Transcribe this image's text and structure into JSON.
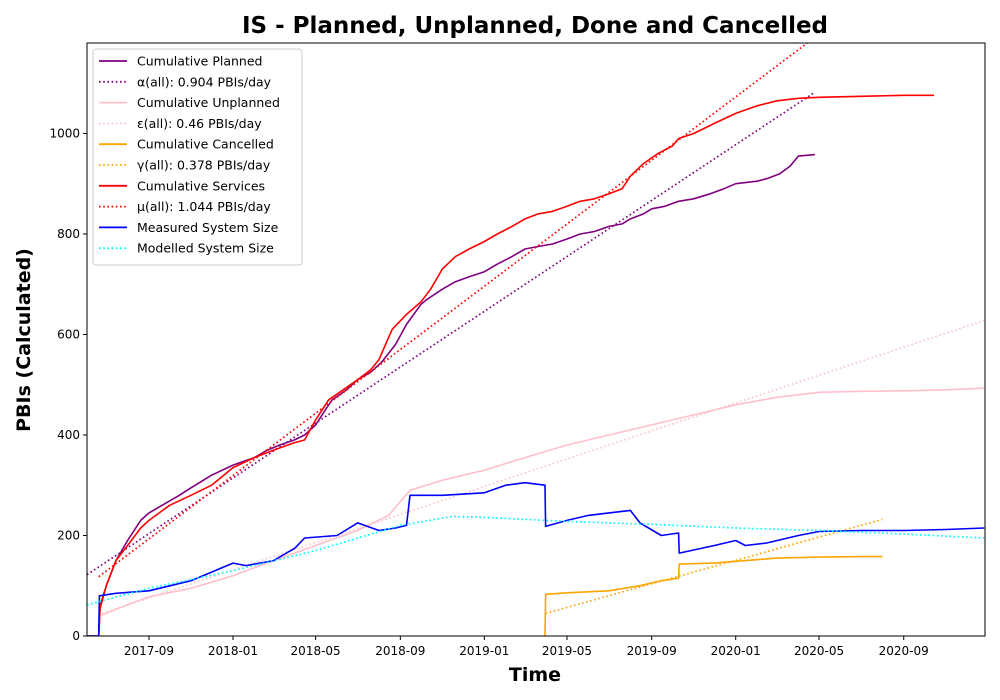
{
  "chart_data": {
    "type": "line",
    "title": "IS - Planned, Unplanned, Done  and Cancelled",
    "xlabel": "Time",
    "ylabel": "PBIs (Calculated)",
    "xlim": [
      "2017-06-03",
      "2020-12-28"
    ],
    "ylim": [
      0,
      1180
    ],
    "xticks": [
      "2017-09",
      "2018-01",
      "2018-05",
      "2018-09",
      "2019-01",
      "2019-05",
      "2019-09",
      "2020-01",
      "2020-05",
      "2020-09"
    ],
    "yticks": [
      0,
      200,
      400,
      600,
      800,
      1000
    ],
    "grid": false,
    "legend_position": "top-left",
    "series": [
      {
        "name": "Cumulative Planned",
        "color": "#800080",
        "style": "solid",
        "x": [
          "2017-06-05",
          "2017-06-20",
          "2017-06-22",
          "2017-07-01",
          "2017-07-15",
          "2017-08-01",
          "2017-08-20",
          "2017-09-01",
          "2017-09-20",
          "2017-10-15",
          "2017-11-01",
          "2017-12-01",
          "2018-01-01",
          "2018-02-01",
          "2018-02-20",
          "2018-03-10",
          "2018-03-31",
          "2018-04-15",
          "2018-05-01",
          "2018-05-15",
          "2018-05-25",
          "2018-06-15",
          "2018-07-01",
          "2018-07-20",
          "2018-08-05",
          "2018-08-25",
          "2018-09-10",
          "2018-10-01",
          "2018-10-10",
          "2018-11-01",
          "2018-11-20",
          "2018-12-10",
          "2019-01-01",
          "2019-01-20",
          "2019-02-10",
          "2019-03-01",
          "2019-03-20",
          "2019-04-10",
          "2019-05-01",
          "2019-05-20",
          "2019-06-10",
          "2019-07-01",
          "2019-07-20",
          "2019-08-01",
          "2019-08-20",
          "2019-09-01",
          "2019-09-20",
          "2019-10-10",
          "2019-11-01",
          "2019-11-25",
          "2019-12-15",
          "2020-01-01",
          "2020-02-01",
          "2020-02-15",
          "2020-03-05",
          "2020-03-20",
          "2020-04-01",
          "2020-04-25"
        ],
        "y": [
          0,
          0,
          60,
          100,
          150,
          190,
          230,
          245,
          260,
          280,
          295,
          320,
          340,
          355,
          370,
          380,
          390,
          400,
          420,
          450,
          470,
          490,
          510,
          525,
          545,
          580,
          620,
          660,
          670,
          690,
          705,
          715,
          725,
          740,
          755,
          770,
          775,
          780,
          790,
          800,
          805,
          815,
          820,
          830,
          840,
          850,
          855,
          865,
          870,
          880,
          890,
          900,
          905,
          910,
          920,
          935,
          955,
          958
        ]
      },
      {
        "name": "α(all): 0.904 PBIs/day",
        "color": "#800080",
        "style": "dotted",
        "x": [
          "2017-06-03",
          "2020-04-25"
        ],
        "y": [
          122,
          1082
        ]
      },
      {
        "name": "Cumulative Unplanned",
        "color": "#ffc0cb",
        "style": "solid",
        "x": [
          "2017-06-25",
          "2017-08-01",
          "2017-09-01",
          "2017-11-01",
          "2018-01-01",
          "2018-03-01",
          "2018-05-01",
          "2018-07-01",
          "2018-08-15",
          "2018-09-15",
          "2018-11-01",
          "2019-01-01",
          "2019-03-01",
          "2019-05-01",
          "2019-07-01",
          "2019-09-01",
          "2019-11-01",
          "2020-01-01",
          "2020-03-01",
          "2020-05-01",
          "2020-07-01",
          "2020-09-01",
          "2020-11-01",
          "2020-12-27"
        ],
        "y": [
          42,
          62,
          78,
          95,
          120,
          150,
          180,
          210,
          240,
          290,
          310,
          330,
          355,
          380,
          400,
          420,
          440,
          460,
          475,
          485,
          487,
          488,
          490,
          493
        ]
      },
      {
        "name": "ε(all): 0.46 PBIs/day",
        "color": "#ffc0cb",
        "style": "dotted",
        "x": [
          "2017-06-25",
          "2020-12-27"
        ],
        "y": [
          45,
          628
        ]
      },
      {
        "name": "Cumulative Cancelled",
        "color": "#ffa500",
        "style": "solid",
        "x": [
          "2019-03-30",
          "2019-03-31",
          "2019-05-01",
          "2019-07-01",
          "2019-08-15",
          "2019-09-15",
          "2019-10-10",
          "2019-10-11",
          "2019-12-01",
          "2020-01-15",
          "2020-03-01",
          "2020-05-01",
          "2020-07-01",
          "2020-08-01"
        ],
        "y": [
          0,
          83,
          86,
          90,
          100,
          110,
          115,
          143,
          145,
          150,
          155,
          157,
          158,
          158
        ]
      },
      {
        "name": "γ(all): 0.378 PBIs/day",
        "color": "#ffa500",
        "style": "dotted",
        "x": [
          "2019-03-31",
          "2020-08-01"
        ],
        "y": [
          45,
          232
        ]
      },
      {
        "name": "Cumulative Services",
        "color": "#ff0000",
        "style": "solid",
        "x": [
          "2017-06-20",
          "2017-06-22",
          "2017-07-01",
          "2017-07-15",
          "2017-08-01",
          "2017-08-20",
          "2017-09-01",
          "2017-10-01",
          "2017-11-01",
          "2017-12-01",
          "2018-01-01",
          "2018-02-01",
          "2018-03-01",
          "2018-04-01",
          "2018-04-15",
          "2018-05-01",
          "2018-05-20",
          "2018-06-10",
          "2018-07-01",
          "2018-07-20",
          "2018-08-01",
          "2018-08-20",
          "2018-09-10",
          "2018-10-01",
          "2018-10-15",
          "2018-11-01",
          "2018-11-20",
          "2018-12-10",
          "2019-01-01",
          "2019-01-20",
          "2019-02-10",
          "2019-03-01",
          "2019-03-20",
          "2019-04-10",
          "2019-05-01",
          "2019-05-20",
          "2019-06-10",
          "2019-07-01",
          "2019-07-20",
          "2019-08-01",
          "2019-08-20",
          "2019-09-10",
          "2019-10-01",
          "2019-10-10",
          "2019-11-01",
          "2019-12-01",
          "2020-01-01",
          "2020-02-01",
          "2020-03-01",
          "2020-04-01",
          "2020-05-01",
          "2020-07-01",
          "2020-09-01",
          "2020-10-15"
        ],
        "y": [
          0,
          55,
          100,
          150,
          180,
          215,
          230,
          260,
          280,
          300,
          335,
          355,
          370,
          385,
          390,
          430,
          470,
          490,
          510,
          530,
          550,
          610,
          640,
          665,
          690,
          730,
          755,
          770,
          785,
          800,
          815,
          830,
          840,
          845,
          855,
          865,
          870,
          880,
          890,
          915,
          940,
          960,
          975,
          990,
          1000,
          1020,
          1040,
          1055,
          1065,
          1070,
          1072,
          1074,
          1076,
          1076
        ]
      },
      {
        "name": "μ(all): 1.044 PBIs/day",
        "color": "#ff0000",
        "style": "dotted",
        "x": [
          "2017-06-20",
          "2020-04-14"
        ],
        "y": [
          118,
          1180
        ]
      },
      {
        "name": "Measured System Size",
        "color": "#0000ff",
        "style": "solid",
        "x": [
          "2017-06-03",
          "2017-06-20",
          "2017-06-21",
          "2017-07-15",
          "2017-09-01",
          "2017-11-01",
          "2018-01-01",
          "2018-01-20",
          "2018-03-01",
          "2018-04-01",
          "2018-04-15",
          "2018-06-01",
          "2018-07-01",
          "2018-08-01",
          "2018-08-25",
          "2018-09-10",
          "2018-09-15",
          "2018-11-01",
          "2019-01-01",
          "2019-02-01",
          "2019-03-01",
          "2019-03-30",
          "2019-03-31",
          "2019-05-01",
          "2019-06-01",
          "2019-07-01",
          "2019-08-01",
          "2019-08-15",
          "2019-09-15",
          "2019-10-10",
          "2019-10-11",
          "2019-12-01",
          "2020-01-01",
          "2020-01-15",
          "2020-02-15",
          "2020-04-01",
          "2020-05-01",
          "2020-07-01",
          "2020-09-01",
          "2020-11-01",
          "2020-12-27"
        ],
        "y": [
          0,
          0,
          80,
          85,
          90,
          110,
          145,
          140,
          150,
          175,
          195,
          200,
          225,
          210,
          215,
          220,
          280,
          280,
          285,
          300,
          305,
          300,
          218,
          230,
          240,
          245,
          250,
          225,
          200,
          205,
          165,
          180,
          190,
          180,
          185,
          200,
          208,
          210,
          210,
          212,
          215
        ]
      },
      {
        "name": "Modelled System Size",
        "color": "#00ffff",
        "style": "dotted",
        "x": [
          "2017-06-03",
          "2017-09-01",
          "2018-01-01",
          "2018-05-01",
          "2018-09-01",
          "2018-11-15",
          "2019-01-01",
          "2019-03-01",
          "2019-05-01",
          "2019-09-01",
          "2020-01-01",
          "2020-05-01",
          "2020-09-01",
          "2020-12-27"
        ],
        "y": [
          62,
          95,
          130,
          170,
          220,
          238,
          236,
          232,
          228,
          222,
          215,
          210,
          203,
          195
        ]
      }
    ]
  }
}
